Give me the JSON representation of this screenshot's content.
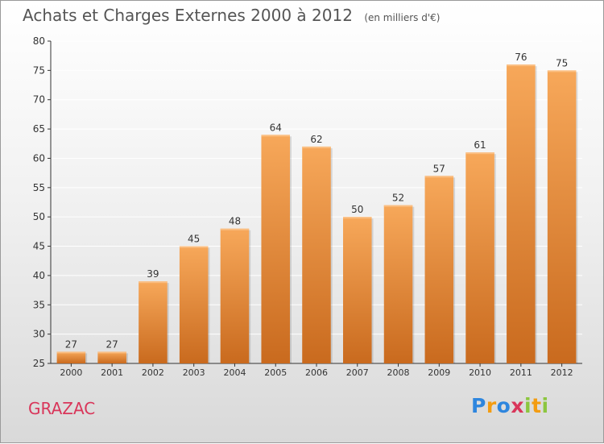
{
  "title": "Achats et Charges Externes 2000 à 2012",
  "subtitle": "(en milliers d'€)",
  "town": "GRAZAC",
  "logo": {
    "letters": [
      "P",
      "r",
      "o",
      "x",
      "i",
      "t",
      "i"
    ],
    "colors": [
      "#2e86de",
      "#f39c12",
      "#2e86de",
      "#d9365a",
      "#8cc63f",
      "#f39c12",
      "#8cc63f"
    ]
  },
  "colors": {
    "bar_top": "#f7a85a",
    "bar_bottom": "#c96a1e",
    "axis": "#333333",
    "grid": "#ffffff"
  },
  "chart_data": {
    "type": "bar",
    "categories": [
      "2000",
      "2001",
      "2002",
      "2003",
      "2004",
      "2005",
      "2006",
      "2007",
      "2008",
      "2009",
      "2010",
      "2011",
      "2012"
    ],
    "values": [
      27,
      27,
      39,
      45,
      48,
      64,
      62,
      50,
      52,
      57,
      61,
      76,
      75
    ],
    "ylim": [
      25,
      80
    ],
    "yticks": [
      25,
      30,
      35,
      40,
      45,
      50,
      55,
      60,
      65,
      70,
      75,
      80
    ],
    "grid": true,
    "data_labels": true
  }
}
